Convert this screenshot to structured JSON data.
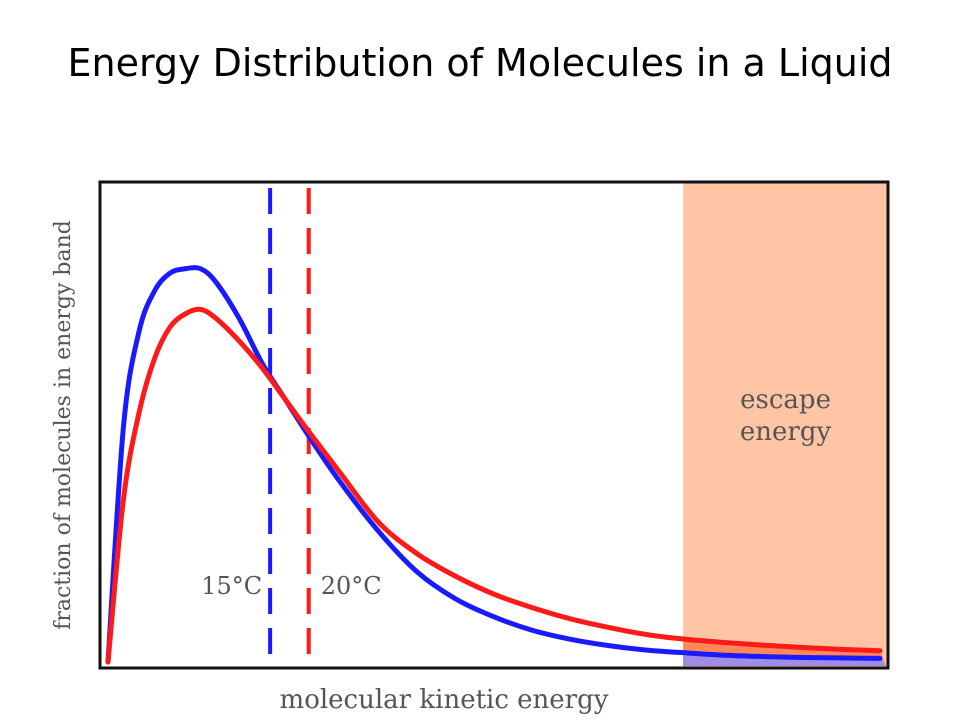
{
  "slide": {
    "title": "Energy Distribution of Molecules in a Liquid"
  },
  "chart_data": {
    "type": "line",
    "title": "Energy Distribution of Molecules in a Liquid",
    "xlabel": "molecular kinetic energy",
    "ylabel": "fraction of molecules in energy band",
    "xlim": [
      0,
      100
    ],
    "ylim": [
      0,
      100
    ],
    "x": [
      0,
      2,
      4,
      6,
      8,
      10,
      12,
      14,
      17,
      20,
      23,
      26,
      30,
      35,
      40,
      45,
      50,
      55,
      60,
      65,
      70,
      75,
      80,
      85,
      90,
      95,
      100
    ],
    "series": [
      {
        "name": "15°C",
        "color": "#1a1aff",
        "values": [
          0,
          52,
          73,
          82,
          86,
          87,
          87,
          84,
          76,
          66,
          58,
          50,
          40,
          29,
          20,
          14,
          10,
          7,
          5,
          3.6,
          2.6,
          2,
          1.5,
          1.2,
          1,
          0.9,
          0.8
        ]
      },
      {
        "name": "20°C",
        "color": "#ff1a1a",
        "values": [
          0,
          36,
          55,
          67,
          74,
          77,
          78,
          76,
          71,
          65,
          58,
          51,
          42,
          31,
          24,
          19,
          15,
          12,
          9.5,
          7.6,
          6,
          5,
          4.3,
          3.7,
          3.2,
          2.8,
          2.5
        ]
      }
    ],
    "markers": [
      {
        "label": "15°C",
        "x": 21,
        "color": "#1a1aff"
      },
      {
        "label": "20°C",
        "x": 26,
        "color": "#ff1a1a"
      }
    ],
    "regions": [
      {
        "label_lines": [
          "escape",
          "energy"
        ],
        "x_start": 74,
        "x_end": 100,
        "color": "#ffc5a5"
      }
    ],
    "grid": false,
    "legend": "none"
  }
}
